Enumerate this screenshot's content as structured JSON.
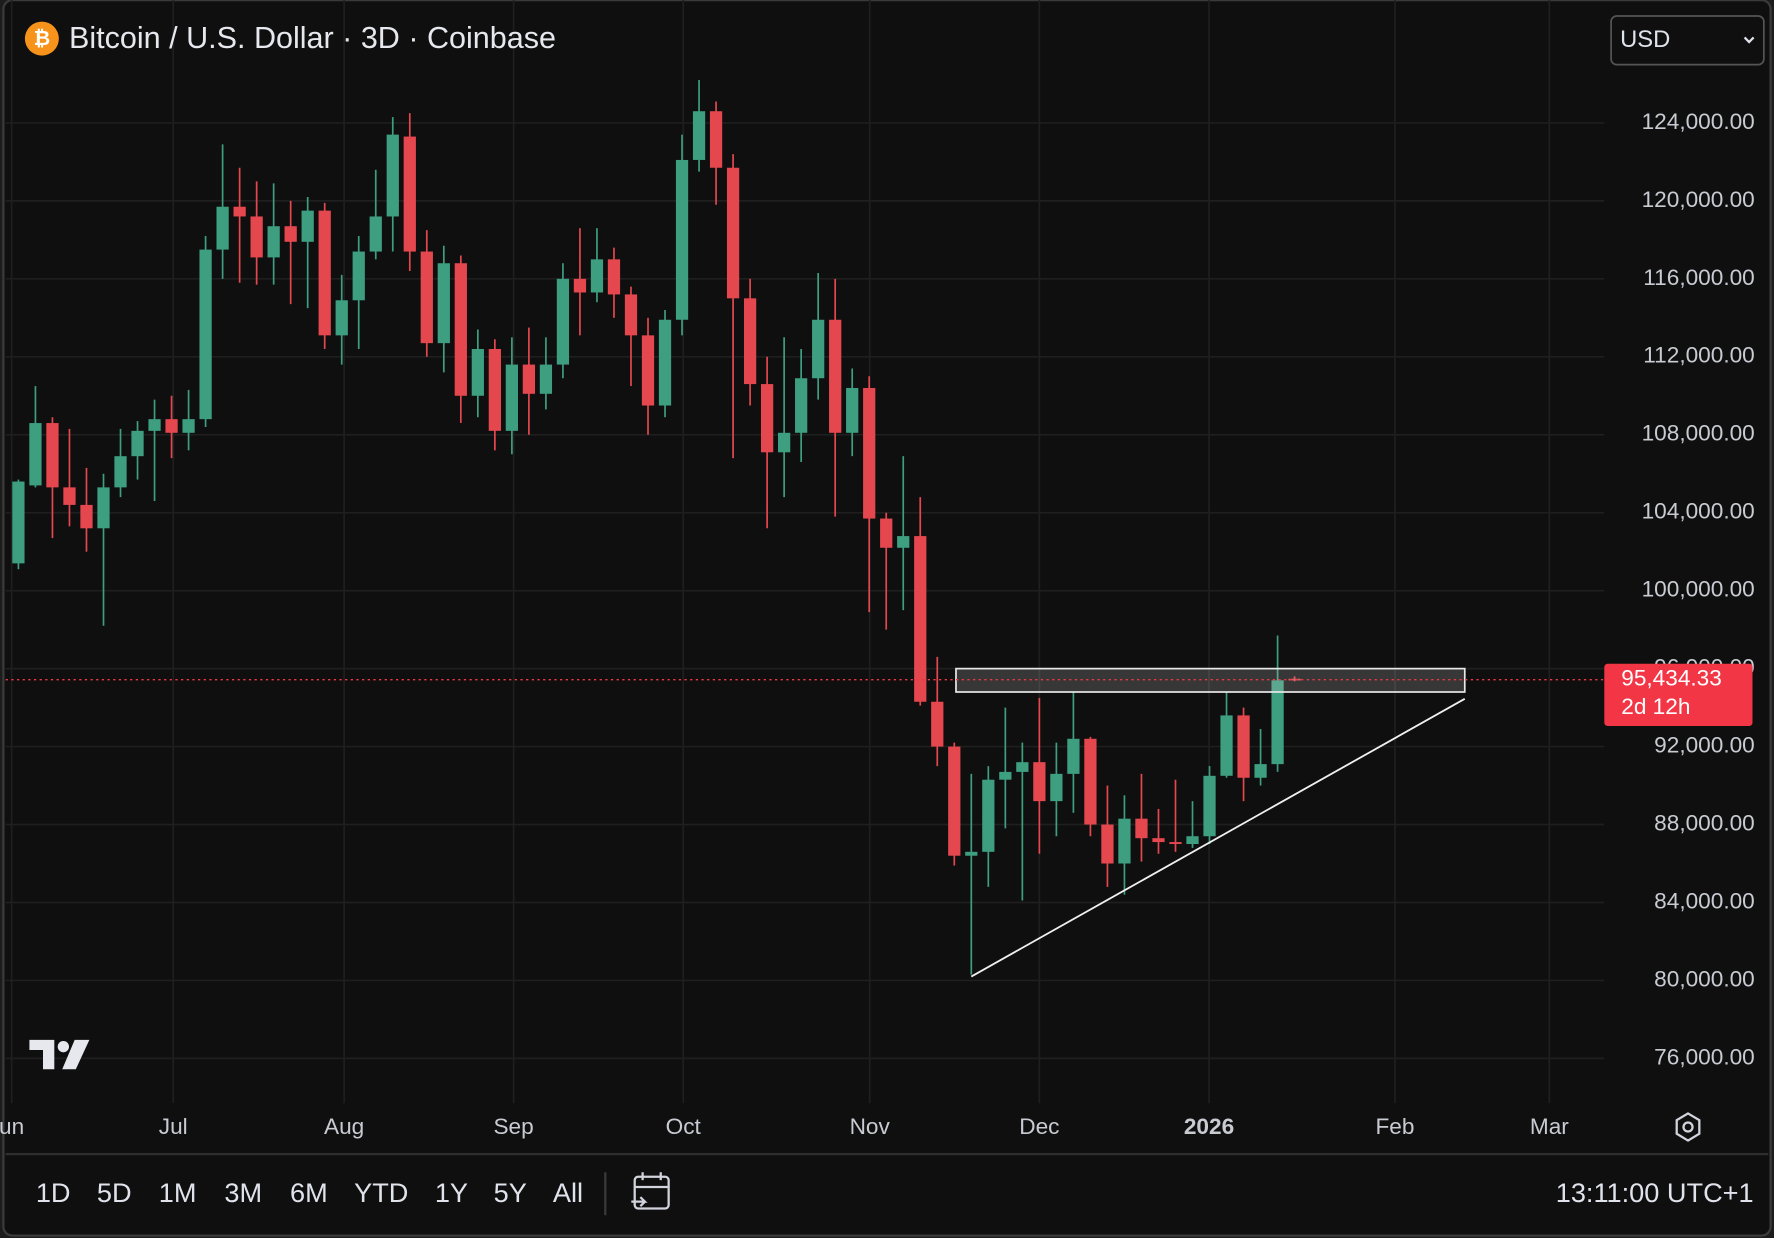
{
  "chart_data": {
    "type": "candlestick",
    "title": "Bitcoin / U.S. Dollar · 3D · Coinbase",
    "icon": "₿",
    "currency": "USD",
    "up_color": "#3d9e80",
    "down_color": "#e5474f",
    "grid": true,
    "xlim": [
      -0.75,
      93.2
    ],
    "ylim": [
      73700,
      130300
    ],
    "xticks": [
      {
        "value": -0.4,
        "label": "un"
      },
      {
        "value": 9.1,
        "label": "Jul"
      },
      {
        "value": 19.14,
        "label": "Aug"
      },
      {
        "value": 29.1,
        "label": "Sep"
      },
      {
        "value": 39.07,
        "label": "Oct"
      },
      {
        "value": 50.03,
        "label": "Nov"
      },
      {
        "value": 60.0,
        "label": "Dec"
      },
      {
        "value": 69.97,
        "label": "2026"
      },
      {
        "value": 80.9,
        "label": "Feb"
      },
      {
        "value": 89.97,
        "label": "Mar"
      }
    ],
    "yticks": [
      {
        "value": 76000,
        "label": "76,000.00"
      },
      {
        "value": 80000,
        "label": "80,000.00"
      },
      {
        "value": 84000,
        "label": "84,000.00"
      },
      {
        "value": 88000,
        "label": "88,000.00"
      },
      {
        "value": 92000,
        "label": "92,000.00"
      },
      {
        "value": 96000,
        "label": "96,000.00"
      },
      {
        "value": 100000,
        "label": "100,000.00"
      },
      {
        "value": 104000,
        "label": "104,000.00"
      },
      {
        "value": 108000,
        "label": "108,000.00"
      },
      {
        "value": 112000,
        "label": "112,000.00"
      },
      {
        "value": 116000,
        "label": "116,000.00"
      },
      {
        "value": 120000,
        "label": "120,000.00"
      },
      {
        "value": 124000,
        "label": "124,000.00"
      }
    ],
    "open": [
      101400,
      105400,
      108600,
      105300,
      104400,
      103200,
      105300,
      106900,
      108200,
      108800,
      108100,
      108800,
      117500,
      119700,
      119200,
      117100,
      118700,
      117900,
      119500,
      113100,
      114900,
      117400,
      119200,
      123300,
      117400,
      112700,
      116800,
      110000,
      112400,
      108200,
      111600,
      110100,
      111600,
      116000,
      115300,
      117000,
      115200,
      113100,
      109500,
      113900,
      122100,
      124600,
      121700,
      115000,
      110600,
      107100,
      108100,
      110900,
      113900,
      108100,
      110400,
      103700,
      102200,
      102800,
      94300,
      92000,
      86400,
      86600,
      90300,
      90700,
      91200,
      89200,
      90600,
      92400,
      88000,
      86000,
      88300,
      87300,
      87100,
      87000,
      87400,
      90500,
      93600,
      90400,
      91100,
      95480
    ],
    "high": [
      105700,
      110500,
      108900,
      108300,
      106300,
      106000,
      108300,
      108700,
      109800,
      110000,
      110300,
      118200,
      122900,
      121700,
      121000,
      120900,
      120000,
      120200,
      119900,
      116200,
      118200,
      121600,
      124300,
      124500,
      118500,
      117700,
      117200,
      113400,
      112900,
      113000,
      113500,
      113000,
      116800,
      118600,
      118600,
      117600,
      115600,
      114000,
      114400,
      123400,
      126200,
      125100,
      122400,
      116000,
      112000,
      113000,
      112400,
      116300,
      116000,
      111400,
      111000,
      104000,
      106900,
      104800,
      96600,
      92200,
      90600,
      91000,
      94000,
      92200,
      94500,
      92200,
      94800,
      92500,
      90000,
      89500,
      90600,
      88800,
      90300,
      89200,
      91000,
      94800,
      94000,
      92900,
      97700,
      95600
    ],
    "low": [
      101100,
      105300,
      102700,
      103300,
      102000,
      98200,
      104800,
      105700,
      104600,
      106800,
      107200,
      108400,
      116000,
      115800,
      115700,
      115700,
      114700,
      114500,
      112400,
      111600,
      112400,
      117000,
      117400,
      116400,
      112000,
      111200,
      108600,
      108900,
      107200,
      107000,
      108000,
      109300,
      110900,
      113100,
      114800,
      114000,
      110500,
      108000,
      108900,
      113100,
      121500,
      119800,
      106800,
      109500,
      103200,
      104800,
      106600,
      109800,
      103800,
      106900,
      98900,
      98000,
      99000,
      94100,
      91000,
      85900,
      80300,
      84800,
      87800,
      84100,
      86500,
      87400,
      88600,
      87400,
      84800,
      84400,
      86100,
      86500,
      86600,
      86800,
      87000,
      90400,
      89200,
      90000,
      90700,
      95350
    ],
    "close": [
      105600,
      108600,
      105300,
      104400,
      103200,
      105300,
      106900,
      108200,
      108800,
      108100,
      108800,
      117500,
      119700,
      119200,
      117100,
      118700,
      117900,
      119500,
      113100,
      114900,
      117400,
      119200,
      123400,
      117400,
      112700,
      116800,
      110000,
      112400,
      108200,
      111600,
      110100,
      111600,
      116000,
      115300,
      117000,
      115200,
      113100,
      109500,
      113900,
      122100,
      124600,
      121700,
      115000,
      110600,
      107100,
      108100,
      110900,
      113900,
      108100,
      110400,
      103700,
      102200,
      102800,
      94300,
      92000,
      86400,
      86600,
      90300,
      90700,
      91200,
      89200,
      90600,
      92400,
      88000,
      86000,
      88300,
      87300,
      87100,
      87000,
      87400,
      90500,
      93600,
      90400,
      91100,
      95400,
      95434.33
    ],
    "last_price": {
      "value": 95434.33,
      "label": "95,434.33",
      "countdown": "2d 12h",
      "color": "#f23645"
    },
    "drawings": {
      "rectangle": {
        "x": [
          55.1,
          85.0
        ],
        "y": [
          94800,
          96000
        ]
      },
      "trendline": {
        "x": [
          56.0,
          85.0
        ],
        "y": [
          80200,
          94450
        ]
      }
    }
  },
  "toolbar": {
    "ranges": [
      "1D",
      "5D",
      "1M",
      "3M",
      "6M",
      "YTD",
      "1Y",
      "5Y",
      "All"
    ],
    "time": "13:11:00 UTC+1"
  }
}
